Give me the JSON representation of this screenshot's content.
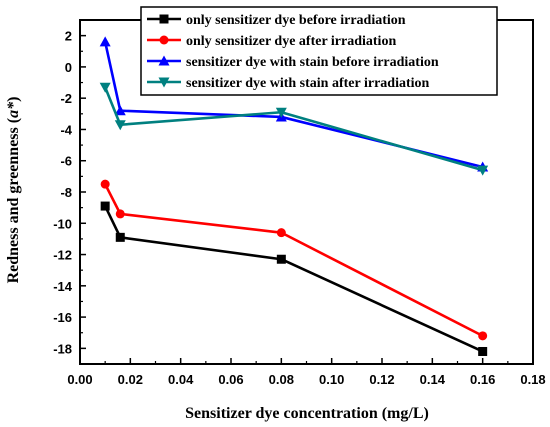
{
  "chart_data": {
    "type": "line",
    "title": "",
    "xlabel": "Sensitizer dye concentration (mg/L)",
    "ylabel_main": "Redness and greenness (",
    "ylabel_var": "a*",
    "ylabel_end": ")",
    "xlim": [
      0.0,
      0.18
    ],
    "ylim": [
      -19,
      3
    ],
    "xticks": [
      "0.00",
      "0.02",
      "0.04",
      "0.06",
      "0.08",
      "0.10",
      "0.12",
      "0.14",
      "0.16",
      "0.18"
    ],
    "yticks": [
      "2",
      "0",
      "-2",
      "-4",
      "-6",
      "-8",
      "-10",
      "-12",
      "-14",
      "-16",
      "-18"
    ],
    "grid": false,
    "legend_position": "top-right",
    "x": [
      0.01,
      0.016,
      0.08,
      0.16
    ],
    "series": [
      {
        "name": "only sensitizer dye before irradiation",
        "color": "#000000",
        "marker": "square",
        "values": [
          -8.9,
          -10.9,
          -12.3,
          -18.2
        ]
      },
      {
        "name": "only sensitizer dye after irradiation",
        "color": "#ff0000",
        "marker": "circle",
        "values": [
          -7.5,
          -9.4,
          -10.6,
          -17.2
        ]
      },
      {
        "name": "sensitizer dye with stain before irradiation",
        "color": "#0000ff",
        "marker": "triangle-up",
        "values": [
          1.6,
          -2.8,
          -3.2,
          -6.4
        ]
      },
      {
        "name": "sensitizer dye with stain after irradiation",
        "color": "#008080",
        "marker": "triangle-down",
        "values": [
          -1.3,
          -3.7,
          -2.9,
          -6.6
        ]
      }
    ]
  }
}
